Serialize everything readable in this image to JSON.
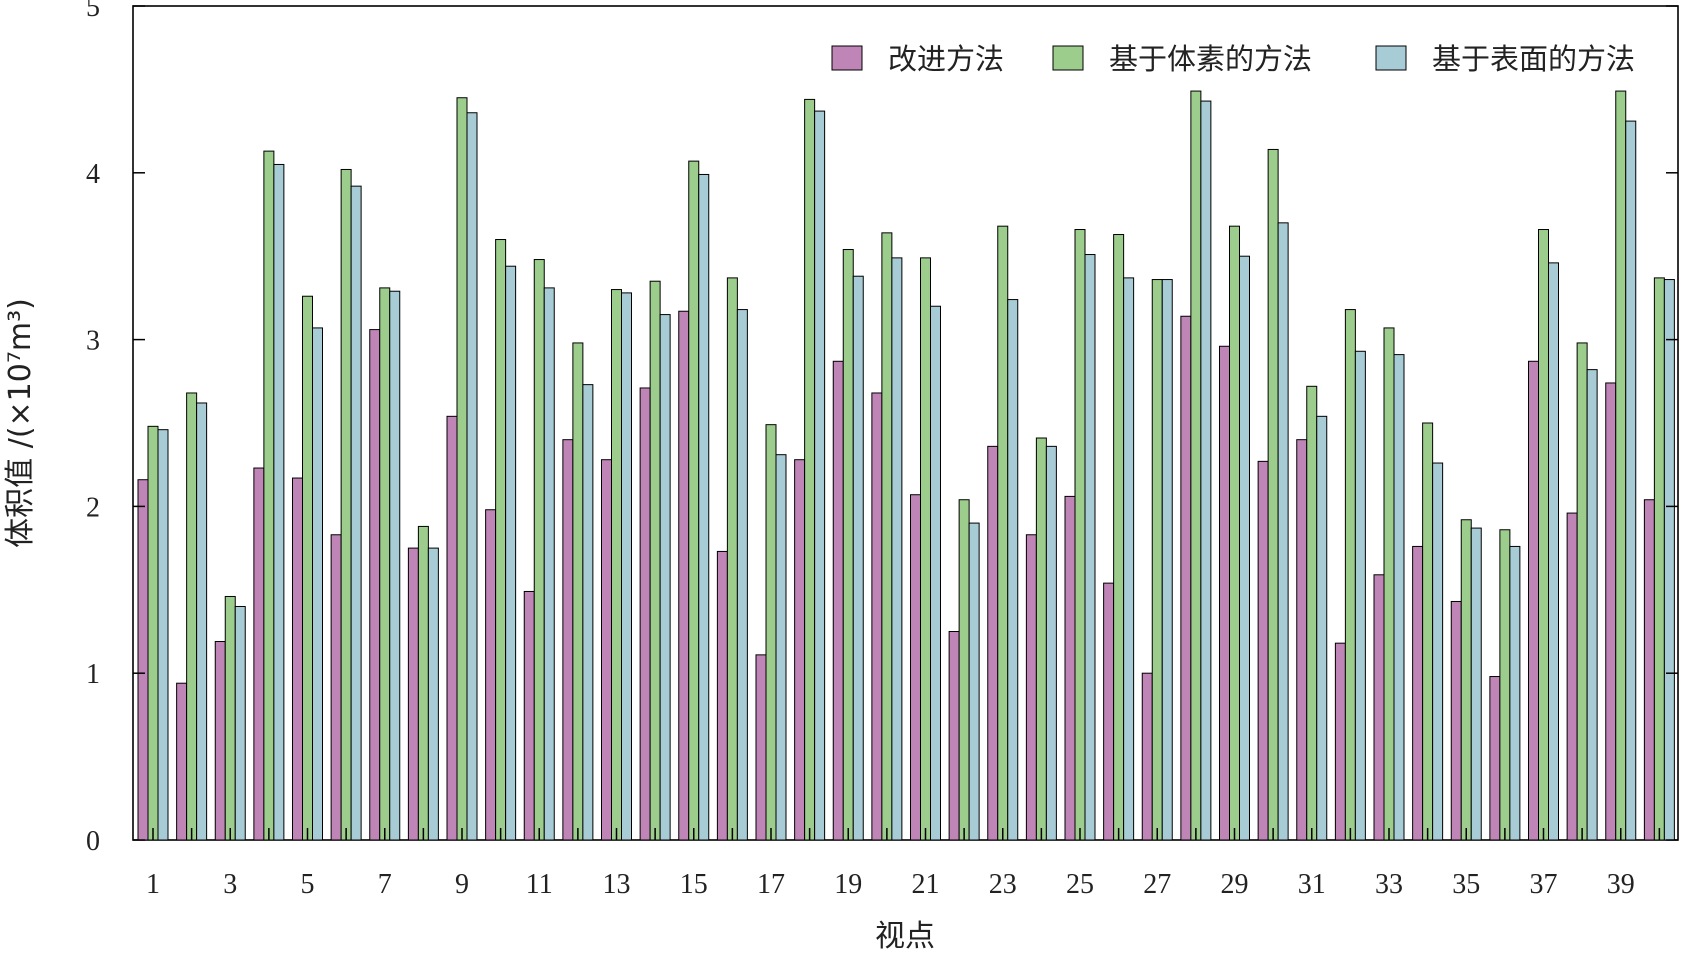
{
  "chart_data": {
    "type": "bar",
    "xlabel": "视点",
    "ylabel": "体积值 /(×10⁷m³)",
    "ylim": [
      0,
      5
    ],
    "yticks": [
      0,
      1,
      2,
      3,
      4,
      5
    ],
    "grid": false,
    "legend_position": "top-right",
    "x_tick_labels": [
      "1",
      "3",
      "5",
      "7",
      "9",
      "11",
      "13",
      "15",
      "17",
      "19",
      "21",
      "23",
      "25",
      "27",
      "29",
      "31",
      "33",
      "35",
      "37",
      "39"
    ],
    "categories": [
      1,
      2,
      3,
      4,
      5,
      6,
      7,
      8,
      9,
      10,
      11,
      12,
      13,
      14,
      15,
      16,
      17,
      18,
      19,
      20,
      21,
      22,
      23,
      24,
      25,
      26,
      27,
      28,
      29,
      30,
      31,
      32,
      33,
      34,
      35,
      36,
      37,
      38,
      39,
      40
    ],
    "series": [
      {
        "name": "改进方法",
        "color": "#c085b7",
        "values": [
          2.16,
          0.94,
          1.19,
          2.23,
          2.17,
          1.83,
          3.06,
          1.75,
          2.54,
          1.98,
          1.49,
          2.4,
          2.28,
          2.71,
          3.17,
          1.73,
          1.11,
          2.28,
          2.87,
          2.68,
          2.07,
          1.25,
          2.36,
          1.83,
          2.06,
          1.54,
          1.0,
          3.14,
          2.96,
          2.27,
          2.4,
          1.18,
          1.59,
          1.76,
          1.43,
          0.98,
          2.87,
          1.96,
          2.74,
          2.04
        ]
      },
      {
        "name": "基于体素的方法",
        "color": "#9ccd8c",
        "values": [
          2.48,
          2.68,
          1.46,
          4.13,
          3.26,
          4.02,
          3.31,
          1.88,
          4.45,
          3.6,
          3.48,
          2.98,
          3.3,
          3.35,
          4.07,
          3.37,
          2.49,
          4.44,
          3.54,
          3.64,
          3.49,
          2.04,
          3.68,
          2.41,
          3.66,
          3.63,
          3.36,
          4.49,
          3.68,
          4.14,
          2.72,
          3.18,
          3.07,
          2.5,
          1.92,
          1.86,
          3.66,
          2.98,
          4.49,
          3.37
        ]
      },
      {
        "name": "基于表面的方法",
        "color": "#a8ccd6",
        "values": [
          2.46,
          2.62,
          1.4,
          4.05,
          3.07,
          3.92,
          3.29,
          1.75,
          4.36,
          3.44,
          3.31,
          2.73,
          3.28,
          3.15,
          3.99,
          3.18,
          2.31,
          4.37,
          3.38,
          3.49,
          3.2,
          1.9,
          3.24,
          2.36,
          3.51,
          3.37,
          3.36,
          4.43,
          3.5,
          3.7,
          2.54,
          2.93,
          2.91,
          2.26,
          1.87,
          1.76,
          3.46,
          2.82,
          4.31,
          3.36
        ]
      }
    ]
  }
}
